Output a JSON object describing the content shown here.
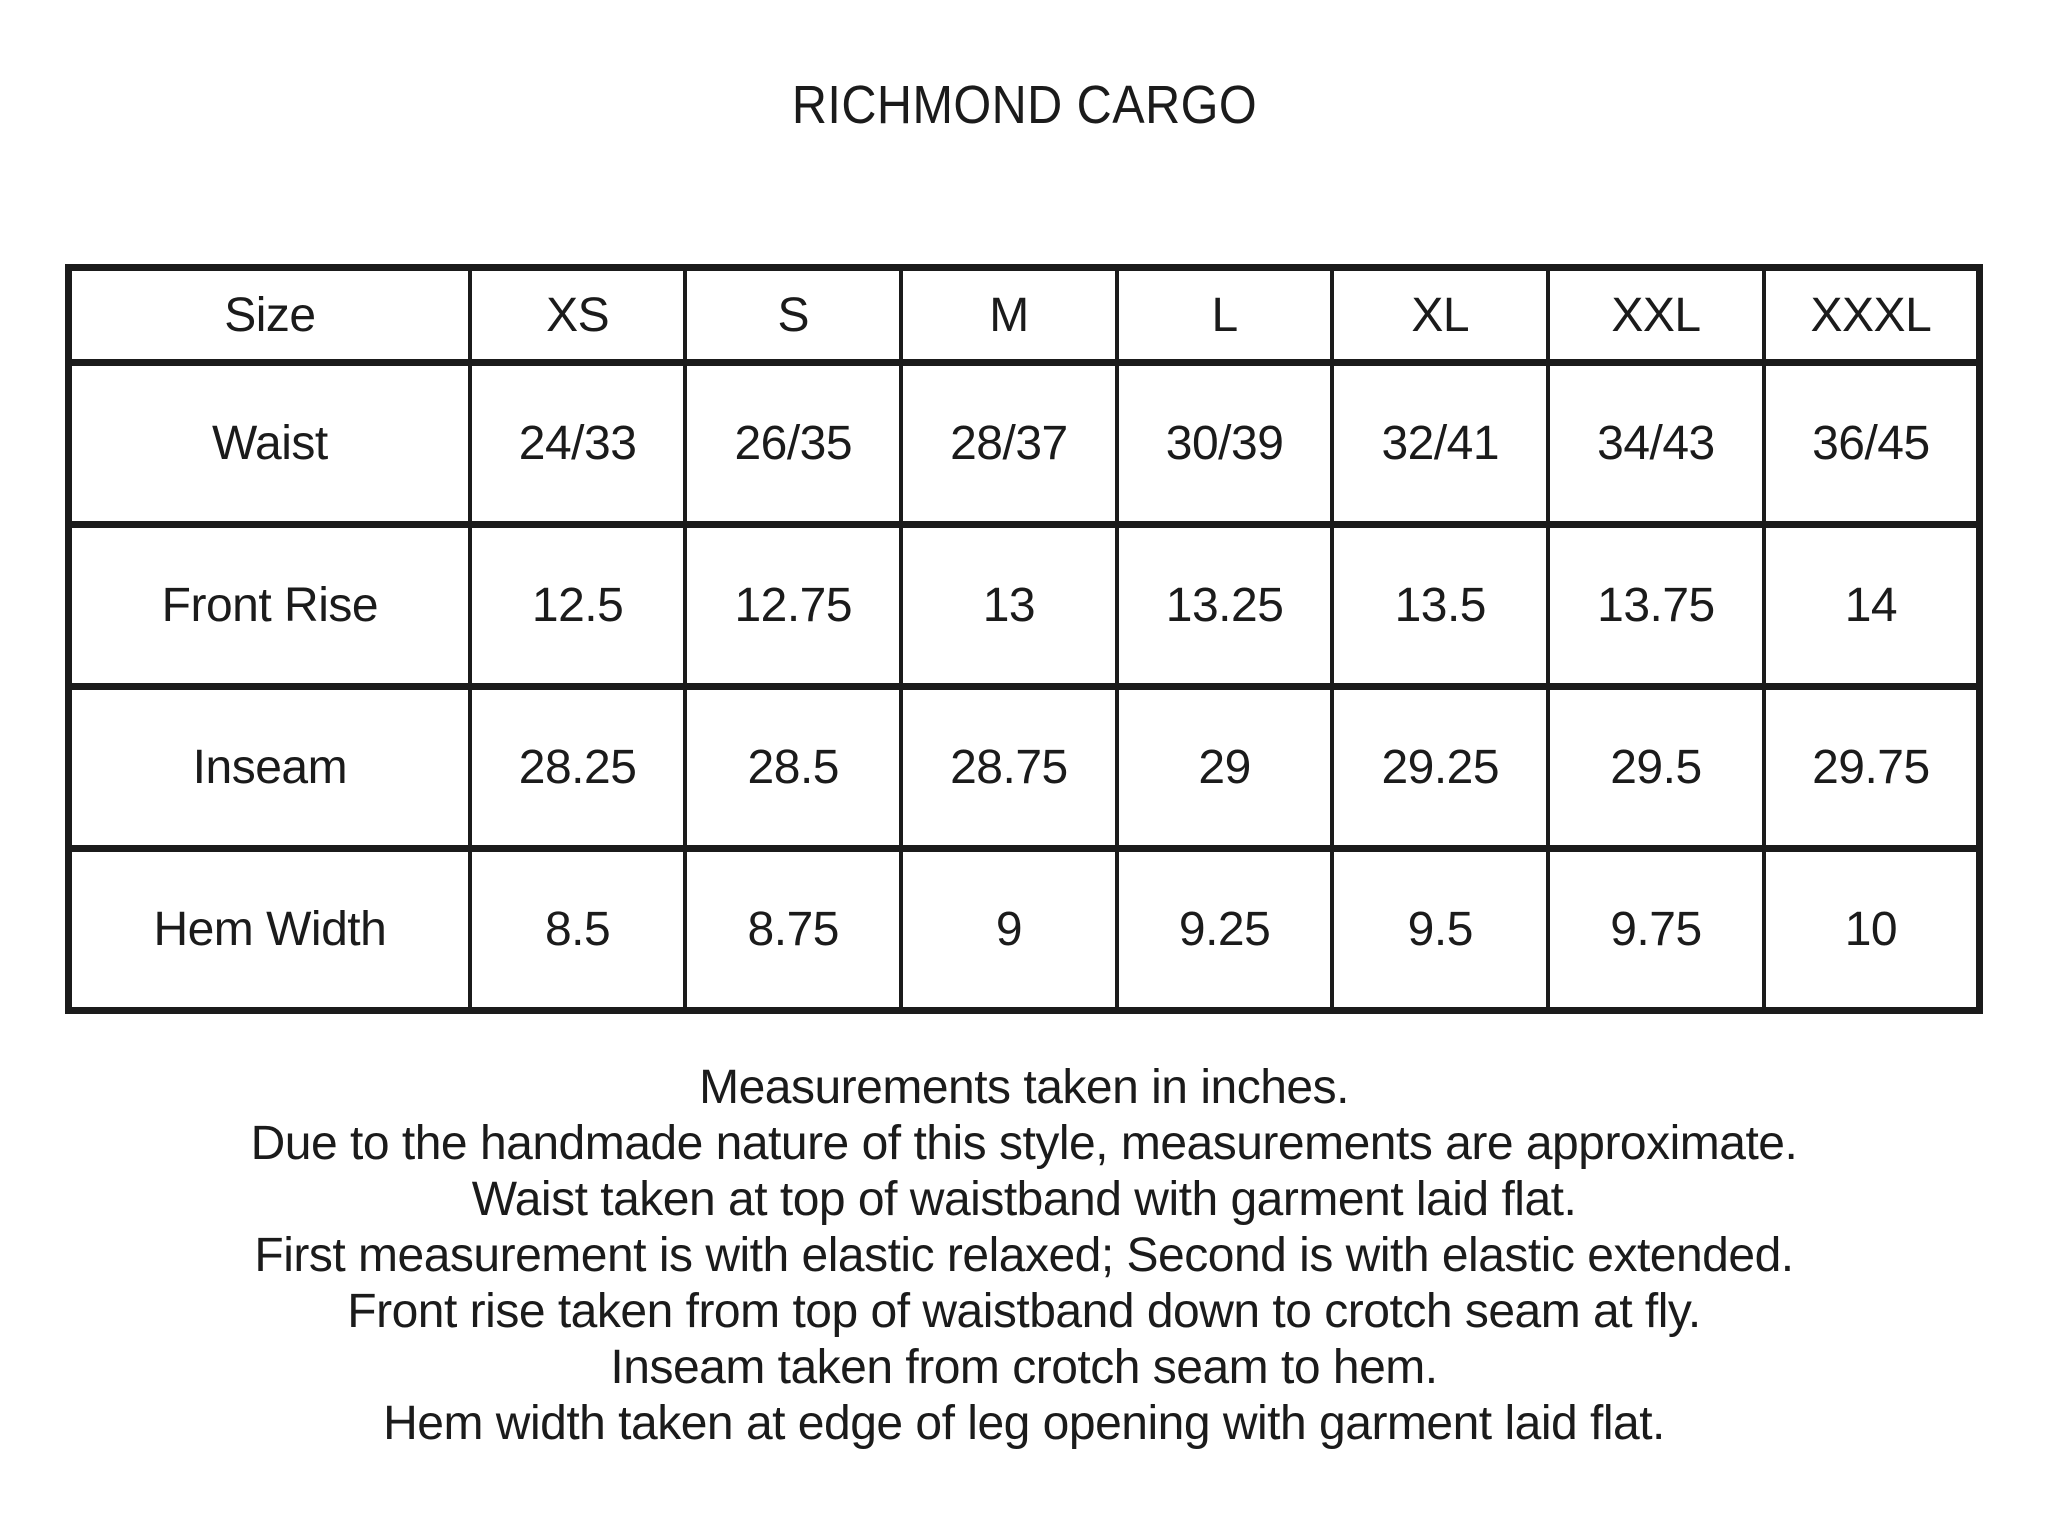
{
  "title": "RICHMOND CARGO",
  "table": {
    "header": [
      "Size",
      "XS",
      "S",
      "M",
      "L",
      "XL",
      "XXL",
      "XXXL"
    ],
    "rows": [
      {
        "label": "Waist",
        "values": [
          "24/33",
          "26/35",
          "28/37",
          "30/39",
          "32/41",
          "34/43",
          "36/45"
        ]
      },
      {
        "label": "Front Rise",
        "values": [
          "12.5",
          "12.75",
          "13",
          "13.25",
          "13.5",
          "13.75",
          "14"
        ]
      },
      {
        "label": "Inseam",
        "values": [
          "28.25",
          "28.5",
          "28.75",
          "29",
          "29.25",
          "29.5",
          "29.75"
        ]
      },
      {
        "label": "Hem Width",
        "values": [
          "8.5",
          "8.75",
          "9",
          "9.25",
          "9.5",
          "9.75",
          "10"
        ]
      }
    ]
  },
  "notes": [
    "Measurements taken in inches.",
    "Due to the handmade nature of this style, measurements are approximate.",
    "Waist taken at top of waistband with garment laid flat.",
    "First measurement is with elastic relaxed; Second is with elastic extended.",
    "Front rise taken from top of waistband down to crotch seam at fly.",
    "Inseam taken from crotch seam to hem.",
    "Hem width taken at edge of leg opening with garment laid flat."
  ],
  "colors": {
    "text": "#1b1b1b",
    "border": "#1b1b1b",
    "background": "#ffffff"
  }
}
